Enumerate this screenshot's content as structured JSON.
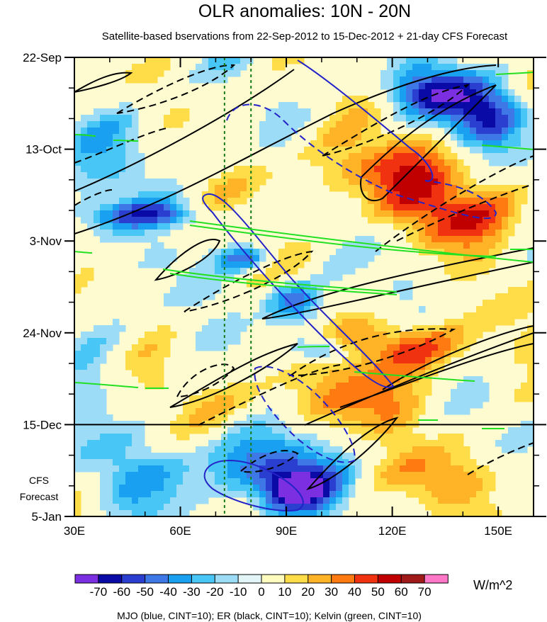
{
  "chart_data": {
    "type": "heatmap",
    "title": "OLR anomalies: 10N - 20N",
    "subtitle": "Satellite-based bservations from 22-Sep-2012 to 15-Dec-2012 + 21-day CFS Forecast",
    "x_ticks": [
      {
        "value": 30,
        "label": "30E"
      },
      {
        "value": 60,
        "label": "60E"
      },
      {
        "value": 90,
        "label": "90E"
      },
      {
        "value": 120,
        "label": "120E"
      },
      {
        "value": 150,
        "label": "150E"
      }
    ],
    "xlim": [
      30,
      160
    ],
    "y_ticks": [
      {
        "day": 0,
        "label": "22-Sep"
      },
      {
        "day": 21,
        "label": "13-Oct"
      },
      {
        "day": 42,
        "label": "3-Nov"
      },
      {
        "day": 63,
        "label": "24-Nov"
      },
      {
        "day": 84,
        "label": "15-Dec"
      },
      {
        "day": 105,
        "label": "5-Jan"
      }
    ],
    "ylim_days": [
      0,
      105
    ],
    "forecast_start_day": 84,
    "forecast_label_line1": "CFS",
    "forecast_label_line2": "Forecast",
    "reference_lines_lon": [
      72.5,
      80
    ],
    "colorbar": {
      "levels": [
        "-70",
        "-60",
        "-50",
        "-40",
        "-30",
        "-20",
        "-10",
        "0",
        "10",
        "20",
        "30",
        "40",
        "50",
        "60",
        "70"
      ],
      "colors": [
        "#7b2fe0",
        "#0a0aa6",
        "#2a3fd0",
        "#3d78e6",
        "#1aa0f0",
        "#48c6f6",
        "#9cdcf6",
        "#e2f6f8",
        "#fffcc0",
        "#ffdd48",
        "#ffb428",
        "#ff7a10",
        "#f03210",
        "#c00000",
        "#a01a1a",
        "#ff78c8"
      ],
      "units": "W/m^2"
    },
    "contours": {
      "mjo": "blue",
      "er": "black",
      "kelvin": "green",
      "cint": 10
    },
    "footer": "MJO (blue, CINT=10); ER (black, CINT=10); Kelvin (green, CINT=10)"
  }
}
